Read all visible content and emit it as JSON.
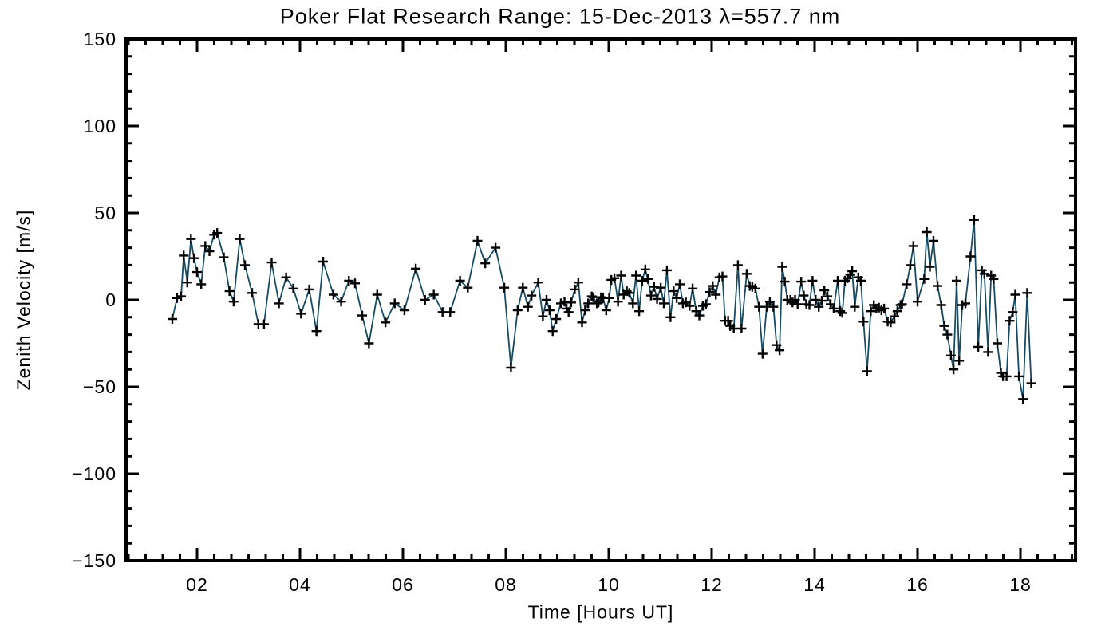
{
  "title": "Poker Flat Research Range: 15-Dec-2013 λ=557.7 nm",
  "chart_data": {
    "type": "line",
    "title": "Poker Flat Research Range: 15-Dec-2013 λ=557.7 nm",
    "xlabel": "Time [Hours UT]",
    "ylabel": "Zenith Velocity [m/s]",
    "xlim": [
      0.62,
      19.07
    ],
    "ylim": [
      -150,
      150
    ],
    "grid": false,
    "legend": null,
    "frame": "box-with-inward-ticks",
    "marker": "plus",
    "line_color": "#174b63",
    "marker_color": "#000000",
    "axis_color": "#000000",
    "background_color": "#ffffff",
    "x_major_ticks": [
      2,
      4,
      6,
      8,
      10,
      12,
      14,
      16,
      18
    ],
    "x_tick_labels": [
      "02",
      "04",
      "06",
      "08",
      "10",
      "12",
      "14",
      "16",
      "18"
    ],
    "x_minor_step": 0.33333,
    "y_major_ticks": [
      150,
      100,
      50,
      0,
      -50,
      -100,
      -150
    ],
    "y_tick_labels": [
      "150",
      "100",
      "50",
      "0",
      "−50",
      "−100",
      "−150"
    ],
    "y_minor_step": 10,
    "series": [
      {
        "name": "zenith-velocity",
        "points": [
          [
            1.52,
            -11
          ],
          [
            1.61,
            1
          ],
          [
            1.69,
            2
          ],
          [
            1.74,
            25.5
          ],
          [
            1.81,
            10
          ],
          [
            1.88,
            35
          ],
          [
            1.94,
            24
          ],
          [
            2.0,
            16
          ],
          [
            2.08,
            9
          ],
          [
            2.16,
            31
          ],
          [
            2.24,
            28
          ],
          [
            2.33,
            37.5
          ],
          [
            2.39,
            38.5
          ],
          [
            2.52,
            24.5
          ],
          [
            2.63,
            5
          ],
          [
            2.71,
            -1
          ],
          [
            2.83,
            35
          ],
          [
            2.93,
            20
          ],
          [
            3.07,
            4
          ],
          [
            3.19,
            -14
          ],
          [
            3.3,
            -14
          ],
          [
            3.45,
            21.5
          ],
          [
            3.59,
            -2
          ],
          [
            3.73,
            13
          ],
          [
            3.87,
            6.5
          ],
          [
            4.02,
            -8
          ],
          [
            4.18,
            6
          ],
          [
            4.32,
            -18
          ],
          [
            4.45,
            22
          ],
          [
            4.65,
            3
          ],
          [
            4.8,
            -1
          ],
          [
            4.95,
            11
          ],
          [
            5.07,
            9.5
          ],
          [
            5.21,
            -9
          ],
          [
            5.34,
            -25
          ],
          [
            5.5,
            3
          ],
          [
            5.66,
            -13
          ],
          [
            5.84,
            -2
          ],
          [
            6.03,
            -6
          ],
          [
            6.25,
            18
          ],
          [
            6.43,
            0
          ],
          [
            6.6,
            3
          ],
          [
            6.77,
            -7
          ],
          [
            6.92,
            -7
          ],
          [
            7.11,
            11
          ],
          [
            7.26,
            7
          ],
          [
            7.45,
            34
          ],
          [
            7.6,
            21
          ],
          [
            7.8,
            30
          ],
          [
            7.97,
            7
          ],
          [
            8.1,
            -39
          ],
          [
            8.23,
            -6
          ],
          [
            8.33,
            7
          ],
          [
            8.43,
            -4
          ],
          [
            8.5,
            2.5
          ],
          [
            8.63,
            10
          ],
          [
            8.72,
            -9.5
          ],
          [
            8.79,
            0
          ],
          [
            8.85,
            -6
          ],
          [
            8.91,
            -18
          ],
          [
            8.98,
            -11
          ],
          [
            9.07,
            -2
          ],
          [
            9.14,
            -1
          ],
          [
            9.18,
            -5
          ],
          [
            9.22,
            -7
          ],
          [
            9.27,
            -1.5
          ],
          [
            9.34,
            6
          ],
          [
            9.41,
            10
          ],
          [
            9.48,
            -13
          ],
          [
            9.54,
            -6
          ],
          [
            9.6,
            -2
          ],
          [
            9.67,
            2
          ],
          [
            9.7,
            1.5
          ],
          [
            9.77,
            -2
          ],
          [
            9.8,
            -1.5
          ],
          [
            9.85,
            1.5
          ],
          [
            9.89,
            1
          ],
          [
            9.95,
            -6
          ],
          [
            10.01,
            1
          ],
          [
            10.05,
            11.5
          ],
          [
            10.11,
            12.5
          ],
          [
            10.18,
            -1
          ],
          [
            10.24,
            14
          ],
          [
            10.29,
            3
          ],
          [
            10.35,
            5
          ],
          [
            10.4,
            4
          ],
          [
            10.47,
            -2
          ],
          [
            10.53,
            14
          ],
          [
            10.59,
            -6.5
          ],
          [
            10.65,
            11
          ],
          [
            10.71,
            17.5
          ],
          [
            10.76,
            12
          ],
          [
            10.82,
            2.5
          ],
          [
            10.88,
            7.5
          ],
          [
            10.94,
            0.5
          ],
          [
            11.01,
            7
          ],
          [
            11.07,
            -2
          ],
          [
            11.13,
            17
          ],
          [
            11.2,
            -10
          ],
          [
            11.26,
            5
          ],
          [
            11.32,
            1
          ],
          [
            11.38,
            9
          ],
          [
            11.44,
            -2
          ],
          [
            11.5,
            -1.5
          ],
          [
            11.57,
            -3.5
          ],
          [
            11.63,
            6.5
          ],
          [
            11.7,
            -6.5
          ],
          [
            11.76,
            -9
          ],
          [
            11.83,
            -3.5
          ],
          [
            11.89,
            -2.5
          ],
          [
            11.96,
            4.5
          ],
          [
            12.02,
            8
          ],
          [
            12.08,
            3
          ],
          [
            12.15,
            13
          ],
          [
            12.21,
            13.5
          ],
          [
            12.26,
            -12
          ],
          [
            12.32,
            -12
          ],
          [
            12.36,
            -15
          ],
          [
            12.43,
            -16.5
          ],
          [
            12.51,
            20
          ],
          [
            12.58,
            -16.5
          ],
          [
            12.68,
            15
          ],
          [
            12.74,
            8
          ],
          [
            12.79,
            7.5
          ],
          [
            12.85,
            6.5
          ],
          [
            12.92,
            -4
          ],
          [
            12.99,
            -31
          ],
          [
            13.07,
            -4
          ],
          [
            13.13,
            -1
          ],
          [
            13.2,
            -4
          ],
          [
            13.26,
            -26
          ],
          [
            13.32,
            -29
          ],
          [
            13.37,
            19
          ],
          [
            13.42,
            10.5
          ],
          [
            13.47,
            0
          ],
          [
            13.53,
            0
          ],
          [
            13.57,
            -1.5
          ],
          [
            13.62,
            0
          ],
          [
            13.67,
            -2.5
          ],
          [
            13.74,
            10.5
          ],
          [
            13.79,
            2.5
          ],
          [
            13.84,
            -2.5
          ],
          [
            13.9,
            -3
          ],
          [
            13.96,
            11
          ],
          [
            14.02,
            0
          ],
          [
            14.08,
            -4
          ],
          [
            14.14,
            -0.5
          ],
          [
            14.19,
            5.5
          ],
          [
            14.25,
            2
          ],
          [
            14.31,
            -2.5
          ],
          [
            14.37,
            -5
          ],
          [
            14.45,
            11
          ],
          [
            14.5,
            -6.5
          ],
          [
            14.54,
            -7.5
          ],
          [
            14.59,
            11
          ],
          [
            14.64,
            12.5
          ],
          [
            14.69,
            14.5
          ],
          [
            14.73,
            16.5
          ],
          [
            14.78,
            -4
          ],
          [
            14.85,
            13
          ],
          [
            14.9,
            11
          ],
          [
            14.95,
            -12.5
          ],
          [
            15.02,
            -41
          ],
          [
            15.09,
            -6.5
          ],
          [
            15.15,
            -3
          ],
          [
            15.2,
            -5
          ],
          [
            15.25,
            -4.5
          ],
          [
            15.3,
            -6
          ],
          [
            15.35,
            -5
          ],
          [
            15.42,
            -12.5
          ],
          [
            15.48,
            -13
          ],
          [
            15.55,
            -9.5
          ],
          [
            15.61,
            -6.5
          ],
          [
            15.67,
            -3
          ],
          [
            15.7,
            -2.5
          ],
          [
            15.79,
            9
          ],
          [
            15.86,
            20
          ],
          [
            15.92,
            31
          ],
          [
            16.0,
            -1
          ],
          [
            16.13,
            12
          ],
          [
            16.18,
            39
          ],
          [
            16.24,
            19
          ],
          [
            16.31,
            34
          ],
          [
            16.39,
            8
          ],
          [
            16.46,
            -3
          ],
          [
            16.52,
            -15
          ],
          [
            16.58,
            -20
          ],
          [
            16.65,
            -32
          ],
          [
            16.7,
            -40
          ],
          [
            16.76,
            11
          ],
          [
            16.81,
            -35
          ],
          [
            16.87,
            -3
          ],
          [
            16.93,
            -2
          ],
          [
            17.03,
            25
          ],
          [
            17.1,
            46
          ],
          [
            17.18,
            -27
          ],
          [
            17.25,
            17
          ],
          [
            17.3,
            15
          ],
          [
            17.37,
            -30
          ],
          [
            17.43,
            14
          ],
          [
            17.48,
            12
          ],
          [
            17.55,
            -25
          ],
          [
            17.62,
            -42
          ],
          [
            17.66,
            -44
          ],
          [
            17.73,
            -44
          ],
          [
            17.79,
            -12
          ],
          [
            17.85,
            -7
          ],
          [
            17.9,
            3
          ],
          [
            17.97,
            -44
          ],
          [
            18.05,
            -57
          ],
          [
            18.13,
            4
          ],
          [
            18.21,
            -48
          ]
        ]
      }
    ]
  }
}
